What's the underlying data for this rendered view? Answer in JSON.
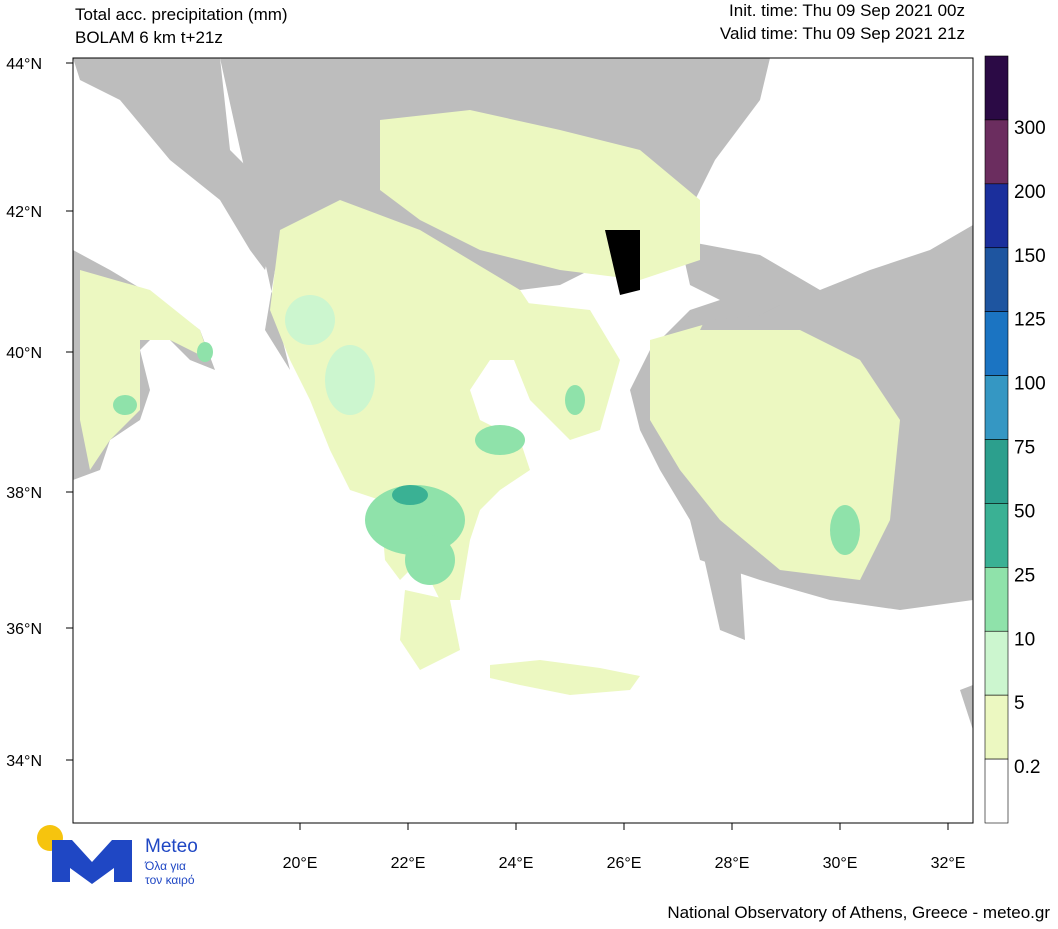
{
  "header": {
    "title": "Total acc. precipitation (mm)",
    "subtitle": "BOLAM 6 km t+21z",
    "init_time": "Init. time: Thu 09 Sep 2021 00z",
    "valid_time": "Valid time: Thu 09 Sep 2021 21z"
  },
  "map": {
    "lat_labels": [
      "44°N",
      "42°N",
      "40°N",
      "38°N",
      "36°N",
      "34°N"
    ],
    "lon_labels": [
      "20°E",
      "22°E",
      "24°E",
      "26°E",
      "28°E",
      "30°E",
      "32°E"
    ]
  },
  "colorbar": {
    "levels": [
      "300",
      "200",
      "150",
      "125",
      "100",
      "75",
      "50",
      "25",
      "10",
      "5",
      "0.2"
    ],
    "colors": [
      "#2b0a45",
      "#6b2d5f",
      "#1b2f9c",
      "#1e55a0",
      "#1b74c2",
      "#3597c3",
      "#2c9f8d",
      "#3ab194",
      "#8fe2aa",
      "#ccf6cf",
      "#ecf8c1",
      "#ffffff"
    ]
  },
  "logo": {
    "name": "Meteo",
    "tagline_1": "Όλα για",
    "tagline_2": "τον καιρό"
  },
  "footer": "National Observatory of Athens, Greece - meteo.gr"
}
